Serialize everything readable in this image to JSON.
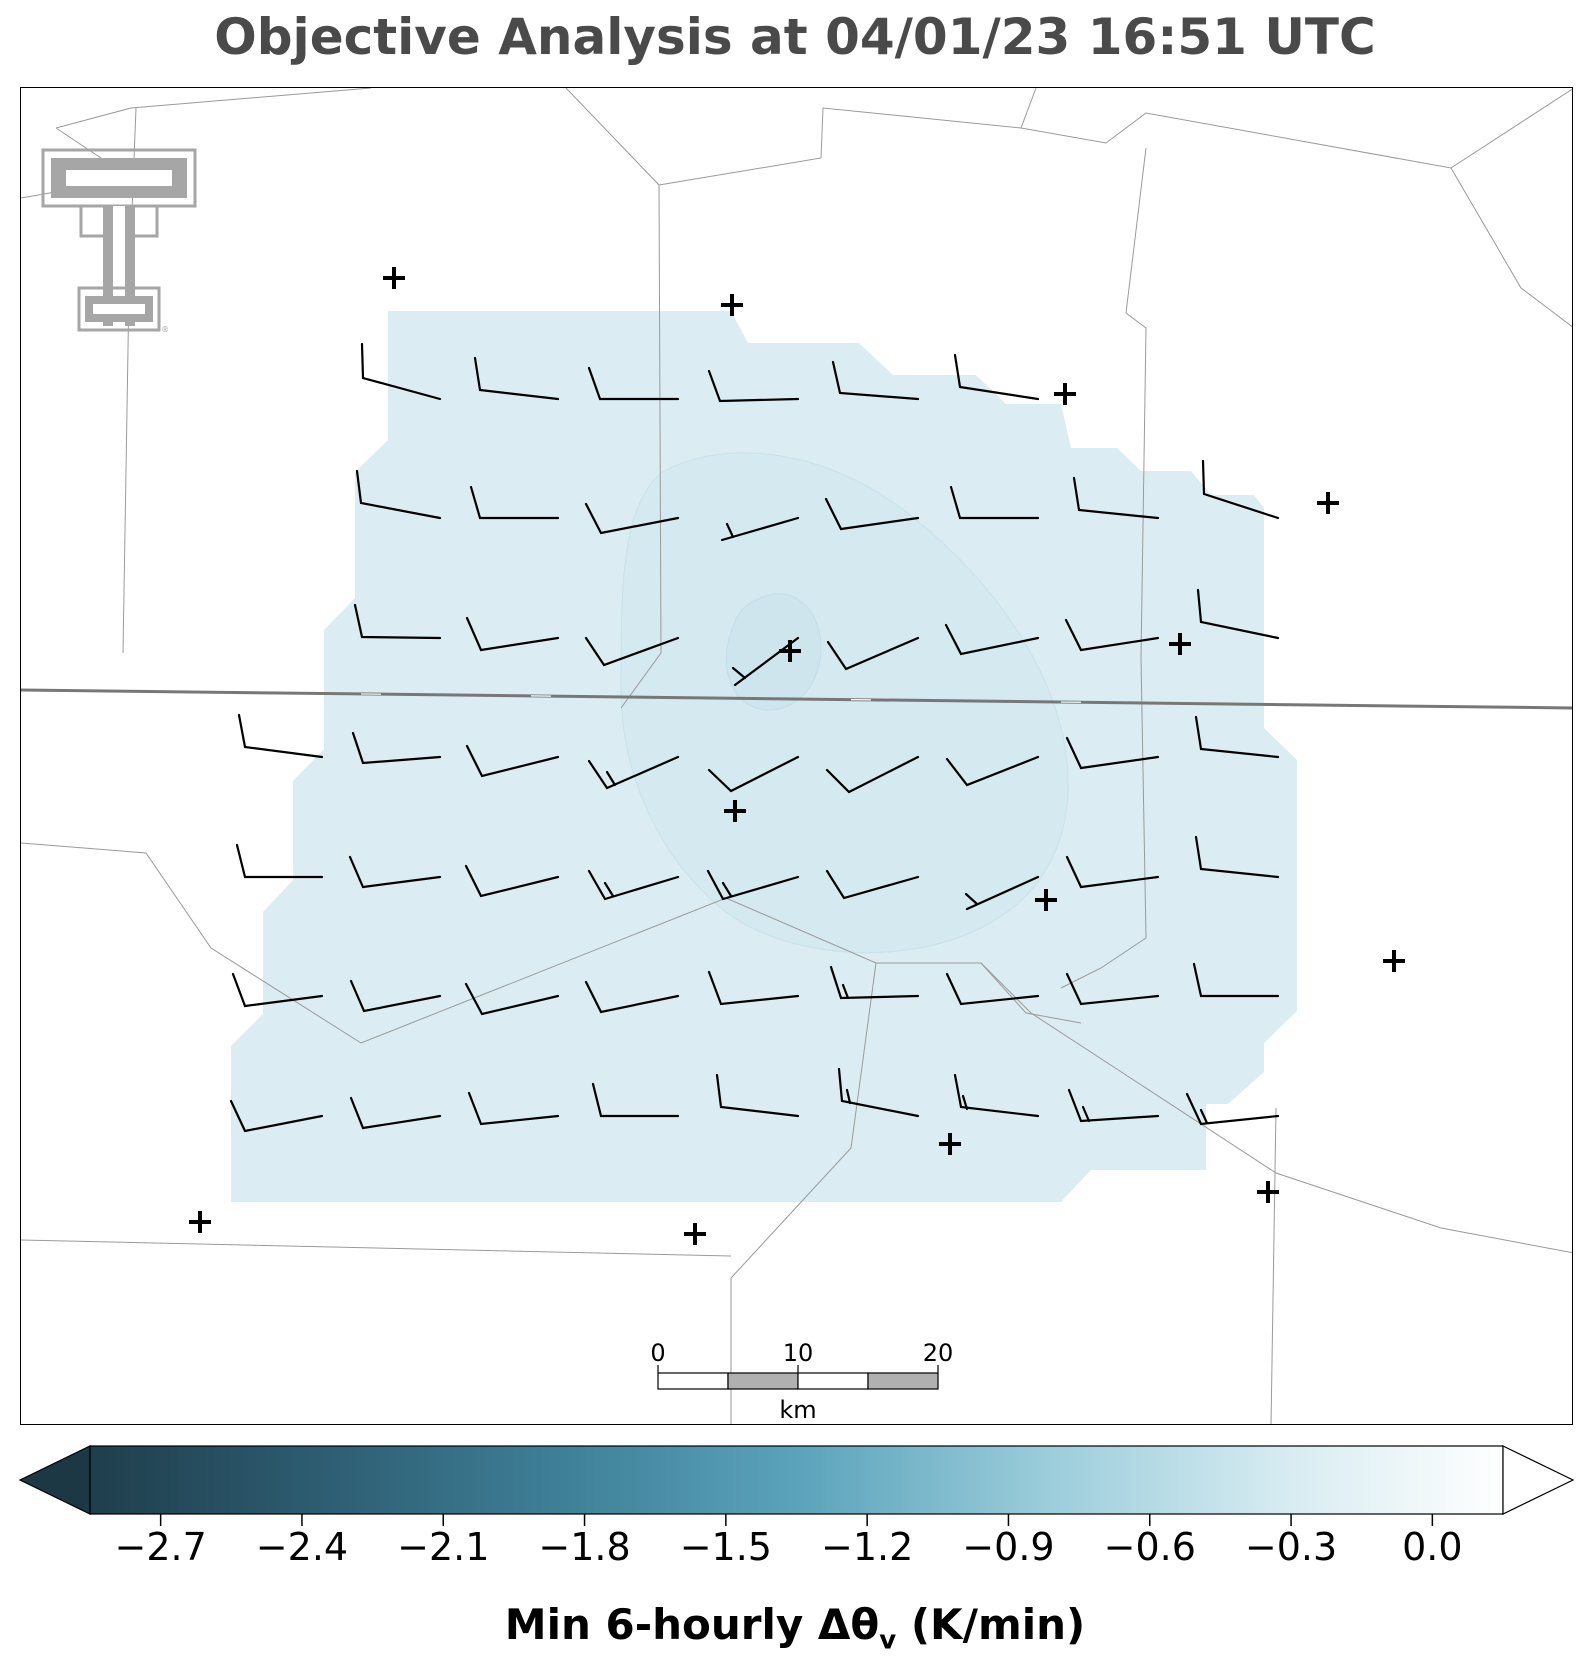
{
  "title": "Objective Analysis at 04/01/23 16:51 UTC",
  "colorbar": {
    "label_main": "Min 6-hourly Δθ",
    "label_sub": "v",
    "label_units": " (K/min)",
    "ticks": [
      "−2.7",
      "−2.4",
      "−2.1",
      "−1.8",
      "−1.5",
      "−1.2",
      "−0.9",
      "−0.6",
      "−0.3",
      "0.0"
    ],
    "tick_values": [
      -2.7,
      -2.4,
      -2.1,
      -1.8,
      -1.5,
      -1.2,
      -0.9,
      -0.6,
      -0.3,
      0.0
    ],
    "range": [
      -2.85,
      0.15
    ],
    "colors_dark_to_light": [
      "#1f3e4c",
      "#2e5e73",
      "#3f8199",
      "#5aa3bb",
      "#9ccddb",
      "#d8ecf2",
      "#ffffff"
    ],
    "extend": "both"
  },
  "scale_bar": {
    "ticks": [
      "0",
      "10",
      "20"
    ],
    "units": "km"
  },
  "field": {
    "fill_color": "#d9ecf2",
    "inner_contour_color": "#cde4ec"
  },
  "logo": {
    "text": "TT",
    "color": "#a6a6a6"
  }
}
